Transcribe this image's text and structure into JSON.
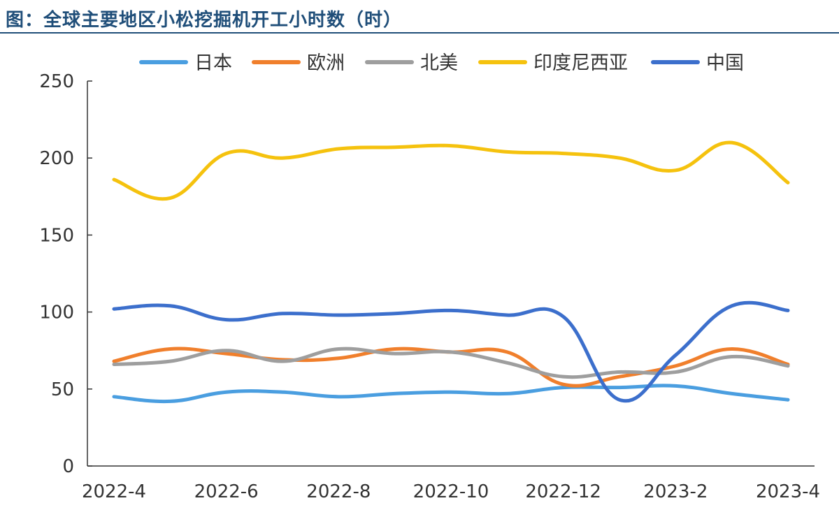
{
  "title": "图：全球主要地区小松挖掘机开工小时数（时）",
  "chart_data": {
    "type": "line",
    "title": "",
    "xlabel": "",
    "ylabel": "",
    "ylim": [
      0,
      250
    ],
    "yticks": [
      "0",
      "50",
      "100",
      "150",
      "200",
      "250"
    ],
    "x": [
      "2022-4",
      "2022-5",
      "2022-6",
      "2022-7",
      "2022-8",
      "2022-9",
      "2022-10",
      "2022-11",
      "2022-12",
      "2023-1",
      "2023-2",
      "2023-3",
      "2023-4"
    ],
    "xtick_labels": [
      "2022-4",
      "2022-6",
      "2022-8",
      "2022-10",
      "2022-12",
      "2023-2",
      "2023-4"
    ],
    "legend_position": "top",
    "grid": false,
    "series": [
      {
        "name": "日本",
        "color": "#4a9ee0",
        "values": [
          45,
          42,
          48,
          48,
          45,
          47,
          48,
          47,
          51,
          51,
          52,
          47,
          43
        ]
      },
      {
        "name": "欧洲",
        "color": "#f07f2c",
        "values": [
          68,
          76,
          73,
          69,
          70,
          76,
          74,
          74,
          53,
          58,
          65,
          76,
          66
        ]
      },
      {
        "name": "北美",
        "color": "#9e9e9e",
        "values": [
          66,
          68,
          75,
          68,
          76,
          73,
          74,
          67,
          58,
          61,
          61,
          71,
          65
        ]
      },
      {
        "name": "印度尼西亚",
        "color": "#f5c20e",
        "values": [
          186,
          174,
          203,
          200,
          206,
          207,
          208,
          204,
          203,
          200,
          192,
          210,
          184
        ]
      },
      {
        "name": "中国",
        "color": "#3c6fcc",
        "values": [
          102,
          104,
          95,
          99,
          98,
          99,
          101,
          98,
          97,
          43,
          72,
          104,
          101
        ]
      }
    ]
  }
}
